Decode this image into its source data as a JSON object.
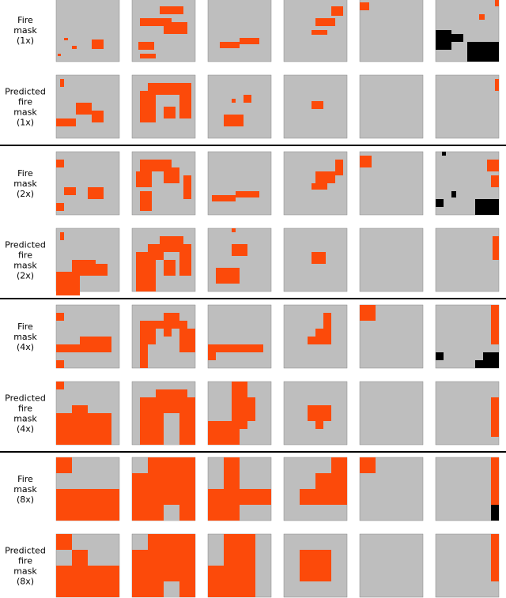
{
  "rows": [
    {
      "label": [
        "Fire",
        "mask",
        "(1x)"
      ]
    },
    {
      "label": [
        "Predicted",
        "fire",
        "mask",
        "(1x)"
      ]
    },
    {
      "label": [
        "Fire",
        "mask",
        "(2x)"
      ]
    },
    {
      "label": [
        "Predicted",
        "fire",
        "mask",
        "(2x)"
      ]
    },
    {
      "label": [
        "Fire",
        "mask",
        "(4x)"
      ]
    },
    {
      "label": [
        "Predicted",
        "fire",
        "mask",
        "(4x)"
      ]
    },
    {
      "label": [
        "Fire",
        "mask",
        "(8x)"
      ]
    },
    {
      "label": [
        "Predicted",
        "fire",
        "mask",
        "(8x)"
      ]
    }
  ]
}
